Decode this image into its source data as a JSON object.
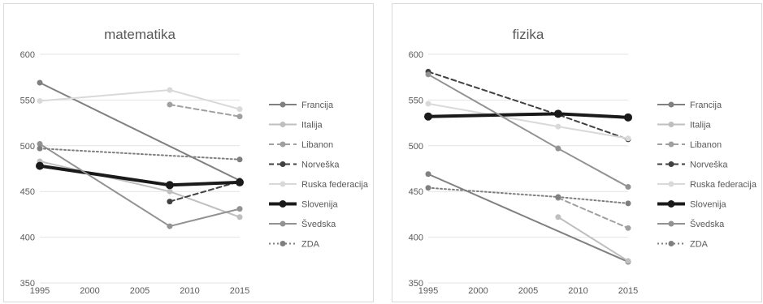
{
  "chart_data": [
    {
      "type": "line",
      "title": "matematika",
      "xlabel": "",
      "ylabel": "",
      "xlim": [
        1995,
        2015
      ],
      "ylim": [
        350,
        600
      ],
      "x_ticks": [
        1995,
        2000,
        2005,
        2010,
        2015
      ],
      "y_ticks": [
        350,
        400,
        450,
        500,
        550,
        600
      ],
      "grid": "horizontal",
      "legend_position": "right",
      "series": [
        {
          "name": "Francija",
          "color": "#808080",
          "dash": "solid",
          "width": 2,
          "points": [
            [
              1995,
              569
            ],
            [
              2015,
              462
            ]
          ]
        },
        {
          "name": "Italija",
          "color": "#bfbfbf",
          "dash": "solid",
          "width": 2,
          "points": [
            [
              1995,
              483
            ],
            [
              2008,
              450
            ],
            [
              2015,
              422
            ]
          ]
        },
        {
          "name": "Libanon",
          "color": "#a0a0a0",
          "dash": "dash",
          "width": 2,
          "points": [
            [
              2008,
              545
            ],
            [
              2015,
              532
            ]
          ]
        },
        {
          "name": "Norveška",
          "color": "#404040",
          "dash": "dash",
          "width": 2,
          "points": [
            [
              2008,
              439
            ],
            [
              2015,
              461
            ]
          ]
        },
        {
          "name": "Ruska federacija",
          "color": "#d9d9d9",
          "dash": "solid",
          "width": 2,
          "points": [
            [
              1995,
              549
            ],
            [
              2008,
              561
            ],
            [
              2015,
              540
            ]
          ]
        },
        {
          "name": "Slovenija",
          "color": "#1a1a1a",
          "dash": "solid",
          "width": 4,
          "points": [
            [
              1995,
              478
            ],
            [
              2008,
              457
            ],
            [
              2015,
              460
            ]
          ]
        },
        {
          "name": "Švedska",
          "color": "#929292",
          "dash": "solid",
          "width": 2,
          "points": [
            [
              1995,
              502
            ],
            [
              2008,
              412
            ],
            [
              2015,
              431
            ]
          ]
        },
        {
          "name": "ZDA",
          "color": "#7f7f7f",
          "dash": "dot",
          "width": 2,
          "points": [
            [
              1995,
              497
            ],
            [
              2015,
              485
            ]
          ]
        }
      ]
    },
    {
      "type": "line",
      "title": "fizika",
      "xlabel": "",
      "ylabel": "",
      "xlim": [
        1995,
        2015
      ],
      "ylim": [
        350,
        600
      ],
      "x_ticks": [
        1995,
        2000,
        2005,
        2010,
        2015
      ],
      "y_ticks": [
        350,
        400,
        450,
        500,
        550,
        600
      ],
      "grid": "horizontal",
      "legend_position": "right",
      "series": [
        {
          "name": "Francija",
          "color": "#808080",
          "dash": "solid",
          "width": 2,
          "points": [
            [
              1995,
              469
            ],
            [
              2015,
              373
            ]
          ]
        },
        {
          "name": "Italija",
          "color": "#bfbfbf",
          "dash": "solid",
          "width": 2,
          "points": [
            [
              2008,
              422
            ],
            [
              2015,
              374
            ]
          ]
        },
        {
          "name": "Libanon",
          "color": "#a0a0a0",
          "dash": "dash",
          "width": 2,
          "points": [
            [
              2008,
              443
            ],
            [
              2015,
              410
            ]
          ]
        },
        {
          "name": "Norveška",
          "color": "#404040",
          "dash": "dash",
          "width": 2,
          "points": [
            [
              1995,
              581
            ],
            [
              2008,
              534
            ],
            [
              2015,
              507
            ]
          ]
        },
        {
          "name": "Ruska federacija",
          "color": "#d9d9d9",
          "dash": "solid",
          "width": 2,
          "points": [
            [
              1995,
              546
            ],
            [
              2008,
              521
            ],
            [
              2015,
              508
            ]
          ]
        },
        {
          "name": "Slovenija",
          "color": "#1a1a1a",
          "dash": "solid",
          "width": 4,
          "points": [
            [
              1995,
              532
            ],
            [
              2008,
              535
            ],
            [
              2015,
              531
            ]
          ]
        },
        {
          "name": "Švedska",
          "color": "#929292",
          "dash": "solid",
          "width": 2,
          "points": [
            [
              1995,
              578
            ],
            [
              2008,
              497
            ],
            [
              2015,
              455
            ]
          ]
        },
        {
          "name": "ZDA",
          "color": "#7f7f7f",
          "dash": "dot",
          "width": 2,
          "points": [
            [
              1995,
              454
            ],
            [
              2008,
              444
            ],
            [
              2015,
              437
            ]
          ]
        }
      ]
    }
  ]
}
